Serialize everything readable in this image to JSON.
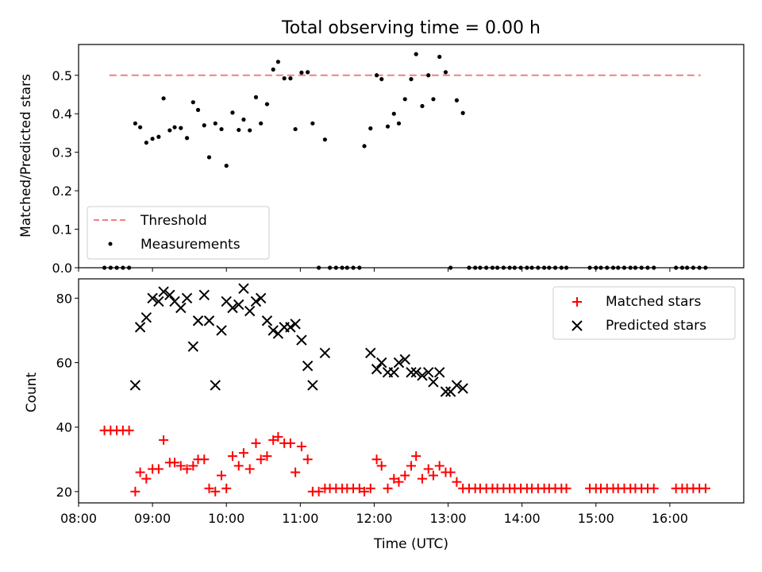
{
  "chart_data": [
    {
      "type": "scatter",
      "title": "Total observing time = 0.00 h",
      "xlabel": "",
      "ylabel": "Matched/Predicted stars",
      "xlim": [
        "08:00",
        "17:00"
      ],
      "ylim": [
        0,
        0.58
      ],
      "yticks": [
        0.0,
        0.1,
        0.2,
        0.3,
        0.4,
        0.5
      ],
      "ytick_labels": [
        "0.0",
        "0.1",
        "0.2",
        "0.3",
        "0.4",
        "0.5"
      ],
      "legend_position": "lower-left",
      "threshold": {
        "name": "Threshold",
        "value": 0.5,
        "x_start": "08:25",
        "x_end": "16:25",
        "color": "#f08080"
      },
      "series": [
        {
          "name": "Measurements",
          "color": "#000000",
          "marker": "dot",
          "points": [
            [
              "08:21",
              0
            ],
            [
              "08:26",
              0
            ],
            [
              "08:31",
              0
            ],
            [
              "08:36",
              0
            ],
            [
              "08:41",
              0
            ],
            [
              "08:46",
              0.375
            ],
            [
              "08:50",
              0.365
            ],
            [
              "08:55",
              0.325
            ],
            [
              "09:00",
              0.335
            ],
            [
              "09:05",
              0.34
            ],
            [
              "09:09",
              0.44
            ],
            [
              "09:14",
              0.357
            ],
            [
              "09:18",
              0.365
            ],
            [
              "09:23",
              0.363
            ],
            [
              "09:28",
              0.337
            ],
            [
              "09:33",
              0.43
            ],
            [
              "09:37",
              0.41
            ],
            [
              "09:42",
              0.37
            ],
            [
              "09:46",
              0.287
            ],
            [
              "09:51",
              0.375
            ],
            [
              "09:56",
              0.36
            ],
            [
              "10:00",
              0.265
            ],
            [
              "10:05",
              0.403
            ],
            [
              "10:10",
              0.358
            ],
            [
              "10:14",
              0.385
            ],
            [
              "10:19",
              0.357
            ],
            [
              "10:24",
              0.443
            ],
            [
              "10:28",
              0.375
            ],
            [
              "10:33",
              0.425
            ],
            [
              "10:38",
              0.515
            ],
            [
              "10:42",
              0.535
            ],
            [
              "10:47",
              0.492
            ],
            [
              "10:52",
              0.492
            ],
            [
              "10:56",
              0.36
            ],
            [
              "11:01",
              0.507
            ],
            [
              "11:06",
              0.508
            ],
            [
              "11:10",
              0.375
            ],
            [
              "11:15",
              0
            ],
            [
              "11:20",
              0.333
            ],
            [
              "11:24",
              0
            ],
            [
              "11:29",
              0
            ],
            [
              "11:34",
              0
            ],
            [
              "11:38",
              0
            ],
            [
              "11:43",
              0
            ],
            [
              "11:48",
              0
            ],
            [
              "11:52",
              0.316
            ],
            [
              "11:57",
              0.362
            ],
            [
              "12:02",
              0.5
            ],
            [
              "12:06",
              0.49
            ],
            [
              "12:11",
              0.367
            ],
            [
              "12:16",
              0.4
            ],
            [
              "12:20",
              0.375
            ],
            [
              "12:25",
              0.438
            ],
            [
              "12:30",
              0.49
            ],
            [
              "12:34",
              0.555
            ],
            [
              "12:39",
              0.42
            ],
            [
              "12:44",
              0.5
            ],
            [
              "12:48",
              0.438
            ],
            [
              "12:53",
              0.548
            ],
            [
              "12:58",
              0.508
            ],
            [
              "13:02",
              0
            ],
            [
              "13:07",
              0.435
            ],
            [
              "13:12",
              0.402
            ],
            [
              "13:17",
              0
            ],
            [
              "13:22",
              0
            ],
            [
              "13:26",
              0
            ],
            [
              "13:31",
              0
            ],
            [
              "13:36",
              0
            ],
            [
              "13:40",
              0
            ],
            [
              "13:45",
              0
            ],
            [
              "13:50",
              0
            ],
            [
              "13:54",
              0
            ],
            [
              "13:59",
              0
            ],
            [
              "14:04",
              0
            ],
            [
              "14:08",
              0
            ],
            [
              "14:13",
              0
            ],
            [
              "14:18",
              0
            ],
            [
              "14:22",
              0
            ],
            [
              "14:27",
              0
            ],
            [
              "14:32",
              0
            ],
            [
              "14:36",
              0
            ],
            [
              "14:55",
              0
            ],
            [
              "15:00",
              0
            ],
            [
              "15:04",
              0
            ],
            [
              "15:09",
              0
            ],
            [
              "15:14",
              0
            ],
            [
              "15:18",
              0
            ],
            [
              "15:23",
              0
            ],
            [
              "15:28",
              0
            ],
            [
              "15:32",
              0
            ],
            [
              "15:37",
              0
            ],
            [
              "15:42",
              0
            ],
            [
              "15:47",
              0
            ],
            [
              "16:05",
              0
            ],
            [
              "16:10",
              0
            ],
            [
              "16:14",
              0
            ],
            [
              "16:19",
              0
            ],
            [
              "16:24",
              0
            ],
            [
              "16:29",
              0
            ]
          ]
        }
      ]
    },
    {
      "type": "scatter",
      "title": "",
      "xlabel": "Time (UTC)",
      "ylabel": "Count",
      "xlim": [
        "08:00",
        "17:00"
      ],
      "ylim": [
        16.5,
        86
      ],
      "yticks": [
        20,
        40,
        60,
        80
      ],
      "ytick_labels": [
        "20",
        "40",
        "60",
        "80"
      ],
      "xticks": [
        "08:00",
        "09:00",
        "10:00",
        "11:00",
        "12:00",
        "13:00",
        "14:00",
        "15:00",
        "16:00"
      ],
      "xtick_labels": [
        "08:00",
        "09:00",
        "10:00",
        "11:00",
        "12:00",
        "13:00",
        "14:00",
        "15:00",
        "16:00"
      ],
      "legend_position": "upper-right",
      "series": [
        {
          "name": "Matched stars",
          "color": "#ff0000",
          "marker": "plus",
          "points": [
            [
              "08:21",
              39
            ],
            [
              "08:26",
              39
            ],
            [
              "08:31",
              39
            ],
            [
              "08:36",
              39
            ],
            [
              "08:41",
              39
            ],
            [
              "08:46",
              20
            ],
            [
              "08:50",
              26
            ],
            [
              "08:55",
              24
            ],
            [
              "09:00",
              27
            ],
            [
              "09:05",
              27
            ],
            [
              "09:09",
              36
            ],
            [
              "09:14",
              29
            ],
            [
              "09:18",
              29
            ],
            [
              "09:23",
              28
            ],
            [
              "09:28",
              27
            ],
            [
              "09:33",
              28
            ],
            [
              "09:37",
              30
            ],
            [
              "09:42",
              30
            ],
            [
              "09:46",
              21
            ],
            [
              "09:51",
              20
            ],
            [
              "09:56",
              25
            ],
            [
              "10:00",
              21
            ],
            [
              "10:05",
              31
            ],
            [
              "10:10",
              28
            ],
            [
              "10:14",
              32
            ],
            [
              "10:19",
              27
            ],
            [
              "10:24",
              35
            ],
            [
              "10:28",
              30
            ],
            [
              "10:33",
              31
            ],
            [
              "10:38",
              36
            ],
            [
              "10:42",
              37
            ],
            [
              "10:47",
              35
            ],
            [
              "10:52",
              35
            ],
            [
              "10:56",
              26
            ],
            [
              "11:01",
              34
            ],
            [
              "11:06",
              30
            ],
            [
              "11:10",
              20
            ],
            [
              "11:15",
              20
            ],
            [
              "11:20",
              21
            ],
            [
              "11:24",
              21
            ],
            [
              "11:29",
              21
            ],
            [
              "11:34",
              21
            ],
            [
              "11:38",
              21
            ],
            [
              "11:43",
              21
            ],
            [
              "11:48",
              21
            ],
            [
              "11:52",
              20
            ],
            [
              "11:57",
              21
            ],
            [
              "12:02",
              30
            ],
            [
              "12:06",
              28
            ],
            [
              "12:11",
              21
            ],
            [
              "12:16",
              24
            ],
            [
              "12:20",
              23
            ],
            [
              "12:25",
              25
            ],
            [
              "12:30",
              28
            ],
            [
              "12:34",
              31
            ],
            [
              "12:39",
              24
            ],
            [
              "12:44",
              27
            ],
            [
              "12:48",
              25
            ],
            [
              "12:53",
              28
            ],
            [
              "12:58",
              26
            ],
            [
              "13:02",
              26
            ],
            [
              "13:07",
              23
            ],
            [
              "13:12",
              21
            ],
            [
              "13:17",
              21
            ],
            [
              "13:22",
              21
            ],
            [
              "13:26",
              21
            ],
            [
              "13:31",
              21
            ],
            [
              "13:36",
              21
            ],
            [
              "13:40",
              21
            ],
            [
              "13:45",
              21
            ],
            [
              "13:50",
              21
            ],
            [
              "13:54",
              21
            ],
            [
              "13:59",
              21
            ],
            [
              "14:04",
              21
            ],
            [
              "14:08",
              21
            ],
            [
              "14:13",
              21
            ],
            [
              "14:18",
              21
            ],
            [
              "14:22",
              21
            ],
            [
              "14:27",
              21
            ],
            [
              "14:32",
              21
            ],
            [
              "14:36",
              21
            ],
            [
              "14:55",
              21
            ],
            [
              "15:00",
              21
            ],
            [
              "15:04",
              21
            ],
            [
              "15:09",
              21
            ],
            [
              "15:14",
              21
            ],
            [
              "15:18",
              21
            ],
            [
              "15:23",
              21
            ],
            [
              "15:28",
              21
            ],
            [
              "15:32",
              21
            ],
            [
              "15:37",
              21
            ],
            [
              "15:42",
              21
            ],
            [
              "15:47",
              21
            ],
            [
              "16:05",
              21
            ],
            [
              "16:10",
              21
            ],
            [
              "16:14",
              21
            ],
            [
              "16:19",
              21
            ],
            [
              "16:24",
              21
            ],
            [
              "16:29",
              21
            ]
          ]
        },
        {
          "name": "Predicted stars",
          "color": "#000000",
          "marker": "cross",
          "points": [
            [
              "08:46",
              53
            ],
            [
              "08:50",
              71
            ],
            [
              "08:55",
              74
            ],
            [
              "09:00",
              80
            ],
            [
              "09:05",
              79
            ],
            [
              "09:09",
              82
            ],
            [
              "09:14",
              81
            ],
            [
              "09:18",
              79
            ],
            [
              "09:23",
              77
            ],
            [
              "09:28",
              80
            ],
            [
              "09:33",
              65
            ],
            [
              "09:37",
              73
            ],
            [
              "09:42",
              81
            ],
            [
              "09:46",
              73
            ],
            [
              "09:51",
              53
            ],
            [
              "09:56",
              70
            ],
            [
              "10:00",
              79
            ],
            [
              "10:05",
              77
            ],
            [
              "10:10",
              78
            ],
            [
              "10:14",
              83
            ],
            [
              "10:19",
              76
            ],
            [
              "10:24",
              79
            ],
            [
              "10:28",
              80
            ],
            [
              "10:33",
              73
            ],
            [
              "10:38",
              70
            ],
            [
              "10:42",
              69
            ],
            [
              "10:47",
              71
            ],
            [
              "10:52",
              71
            ],
            [
              "10:56",
              72
            ],
            [
              "11:01",
              67
            ],
            [
              "11:06",
              59
            ],
            [
              "11:10",
              53
            ],
            [
              "11:20",
              63
            ],
            [
              "11:57",
              63
            ],
            [
              "12:02",
              58
            ],
            [
              "12:06",
              60
            ],
            [
              "12:11",
              57
            ],
            [
              "12:16",
              57
            ],
            [
              "12:20",
              60
            ],
            [
              "12:25",
              61
            ],
            [
              "12:30",
              57
            ],
            [
              "12:34",
              57
            ],
            [
              "12:39",
              56
            ],
            [
              "12:44",
              57
            ],
            [
              "12:48",
              54
            ],
            [
              "12:53",
              57
            ],
            [
              "12:58",
              51
            ],
            [
              "13:02",
              51
            ],
            [
              "13:07",
              53
            ],
            [
              "13:12",
              52
            ]
          ]
        }
      ]
    }
  ]
}
